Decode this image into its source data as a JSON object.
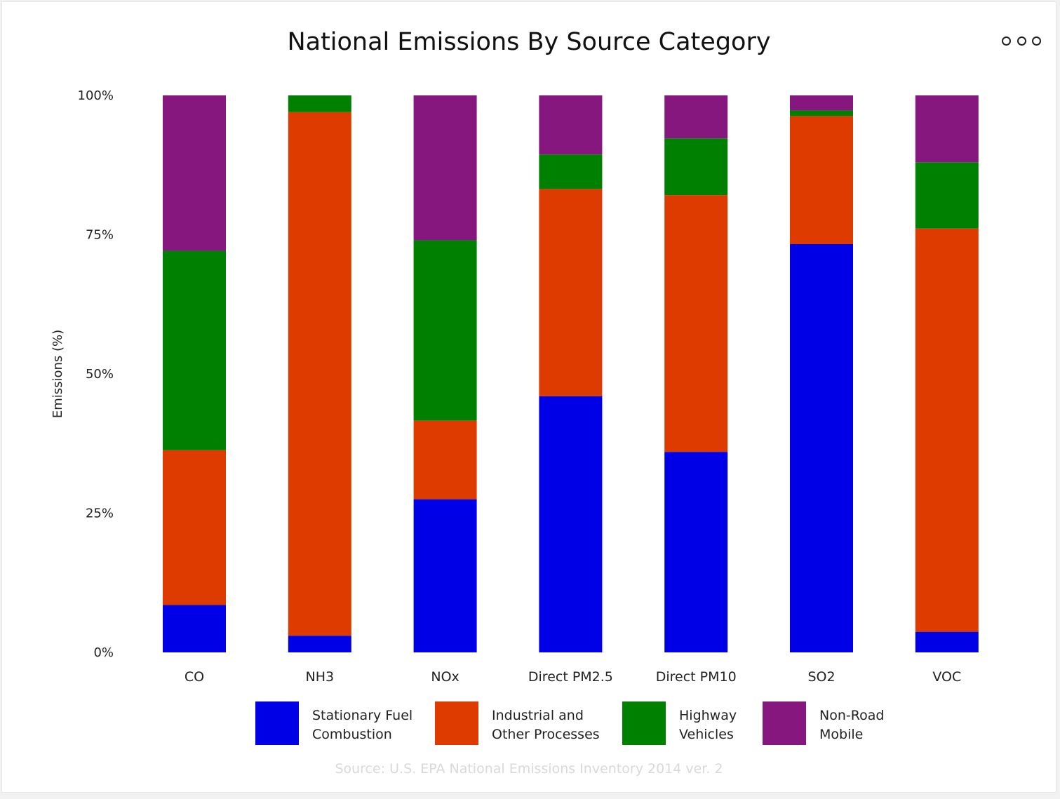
{
  "menu_icon": "more-options-icon",
  "source": "Source: U.S. EPA National Emissions Inventory 2014 ver. 2",
  "chart_data": {
    "type": "bar",
    "stacked": true,
    "normalized": true,
    "title": "National Emissions By Source Category",
    "xlabel": "",
    "ylabel": "Emissions (%)",
    "ylim": [
      0,
      100
    ],
    "yticks": [
      "0%",
      "25%",
      "50%",
      "75%",
      "100%"
    ],
    "yticks_values": [
      0,
      25,
      50,
      75,
      100
    ],
    "grid": false,
    "legend_position": "bottom",
    "categories": [
      "CO",
      "NH3",
      "NOx",
      "Direct PM2.5",
      "Direct PM10",
      "SO2",
      "VOC"
    ],
    "series": [
      {
        "name": "Stationary Fuel Combustion",
        "legend_lines": [
          "Stationary Fuel",
          "Combustion"
        ],
        "color": "#0000e6",
        "values": [
          8.5,
          3,
          27.5,
          46,
          36,
          73.3,
          3.7
        ]
      },
      {
        "name": "Industrial and Other Processes",
        "legend_lines": [
          "Industrial and",
          "Other Processes"
        ],
        "color": "#dd3b00",
        "values": [
          27.8,
          94,
          14.1,
          37.2,
          46.1,
          23,
          72.4
        ]
      },
      {
        "name": "Highway Vehicles",
        "legend_lines": [
          "Highway",
          "Vehicles"
        ],
        "color": "#008000",
        "values": [
          35.8,
          3,
          32.4,
          6.2,
          10.2,
          1,
          11.9
        ]
      },
      {
        "name": "Non-Road Mobile",
        "legend_lines": [
          "Non-Road",
          "Mobile"
        ],
        "color": "#85177f",
        "values": [
          27.9,
          0,
          26,
          10.6,
          7.7,
          2.7,
          12
        ]
      }
    ]
  }
}
